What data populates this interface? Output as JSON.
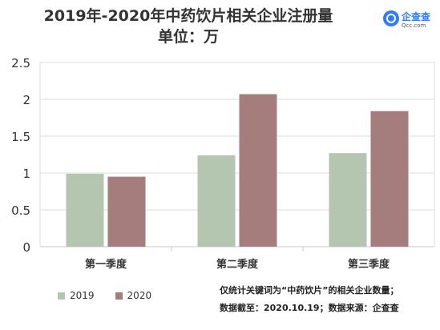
{
  "chart_data": {
    "type": "bar",
    "title": "2019年-2020年中药饮片相关企业注册量",
    "subtitle": "单位：万",
    "categories": [
      "第一季度",
      "第二季度",
      "第三季度"
    ],
    "series": [
      {
        "name": "2019",
        "values": [
          0.99,
          1.24,
          1.27
        ],
        "color": "#b5c6b0"
      },
      {
        "name": "2020",
        "values": [
          0.95,
          2.07,
          1.84
        ],
        "color": "#a67d7d"
      }
    ],
    "yticks": [
      "0",
      "0.5",
      "1",
      "1.5",
      "2",
      "2.5"
    ],
    "ylim": [
      0,
      2.5
    ],
    "grid": true,
    "legend": "bottom-left"
  },
  "logo": {
    "name": "企查查",
    "sub": "Qcc.com",
    "color": "#2f7cf6"
  },
  "notes": {
    "line1": "仅统计关键词为“中药饮片”的相关企业数量；",
    "line2": "数据截至：2020.10.19；数据来源：企查查"
  }
}
